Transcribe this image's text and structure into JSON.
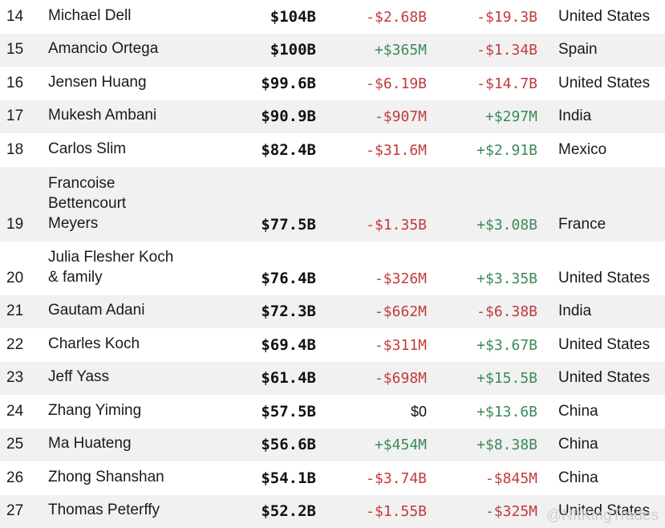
{
  "rows": [
    {
      "rank": "14",
      "name": "Michael Dell",
      "net_worth": "$104B",
      "last_change": "-$2.68B",
      "ytd_change": "-$19.3B",
      "country": "United States"
    },
    {
      "rank": "15",
      "name": "Amancio Ortega",
      "net_worth": "$100B",
      "last_change": "+$365M",
      "ytd_change": "-$1.34B",
      "country": "Spain"
    },
    {
      "rank": "16",
      "name": "Jensen Huang",
      "net_worth": "$99.6B",
      "last_change": "-$6.19B",
      "ytd_change": "-$14.7B",
      "country": "United States"
    },
    {
      "rank": "17",
      "name": "Mukesh Ambani",
      "net_worth": "$90.9B",
      "last_change": "-$907M",
      "ytd_change": "+$297M",
      "country": "India"
    },
    {
      "rank": "18",
      "name": "Carlos Slim",
      "net_worth": "$82.4B",
      "last_change": "-$31.6M",
      "ytd_change": "+$2.91B",
      "country": "Mexico"
    },
    {
      "rank": "19",
      "name": "Francoise\nBettencourt\nMeyers",
      "net_worth": "$77.5B",
      "last_change": "-$1.35B",
      "ytd_change": "+$3.08B",
      "country": "France"
    },
    {
      "rank": "20",
      "name": "Julia Flesher Koch\n& family",
      "net_worth": "$76.4B",
      "last_change": "-$326M",
      "ytd_change": "+$3.35B",
      "country": "United States"
    },
    {
      "rank": "21",
      "name": "Gautam Adani",
      "net_worth": "$72.3B",
      "last_change": "-$662M",
      "ytd_change": "-$6.38B",
      "country": "India"
    },
    {
      "rank": "22",
      "name": "Charles Koch",
      "net_worth": "$69.4B",
      "last_change": "-$311M",
      "ytd_change": "+$3.67B",
      "country": "United States"
    },
    {
      "rank": "23",
      "name": "Jeff Yass",
      "net_worth": "$61.4B",
      "last_change": "-$698M",
      "ytd_change": "+$15.5B",
      "country": "United States"
    },
    {
      "rank": "24",
      "name": "Zhang Yiming",
      "net_worth": "$57.5B",
      "last_change": "$0",
      "ytd_change": "+$13.6B",
      "country": "China"
    },
    {
      "rank": "25",
      "name": "Ma Huateng",
      "net_worth": "$56.6B",
      "last_change": "+$454M",
      "ytd_change": "+$8.38B",
      "country": "China"
    },
    {
      "rank": "26",
      "name": "Zhong Shanshan",
      "net_worth": "$54.1B",
      "last_change": "-$3.74B",
      "ytd_change": "-$845M",
      "country": "China"
    },
    {
      "rank": "27",
      "name": "Thomas Peterffy",
      "net_worth": "$52.2B",
      "last_change": "-$1.55B",
      "ytd_change": "-$325M",
      "country": "United States"
    }
  ],
  "watermark": "@NftKingTrades",
  "colors": {
    "negative": "#c23b3b",
    "positive": "#3b8a5a",
    "stripe": "#f1f1f1"
  }
}
